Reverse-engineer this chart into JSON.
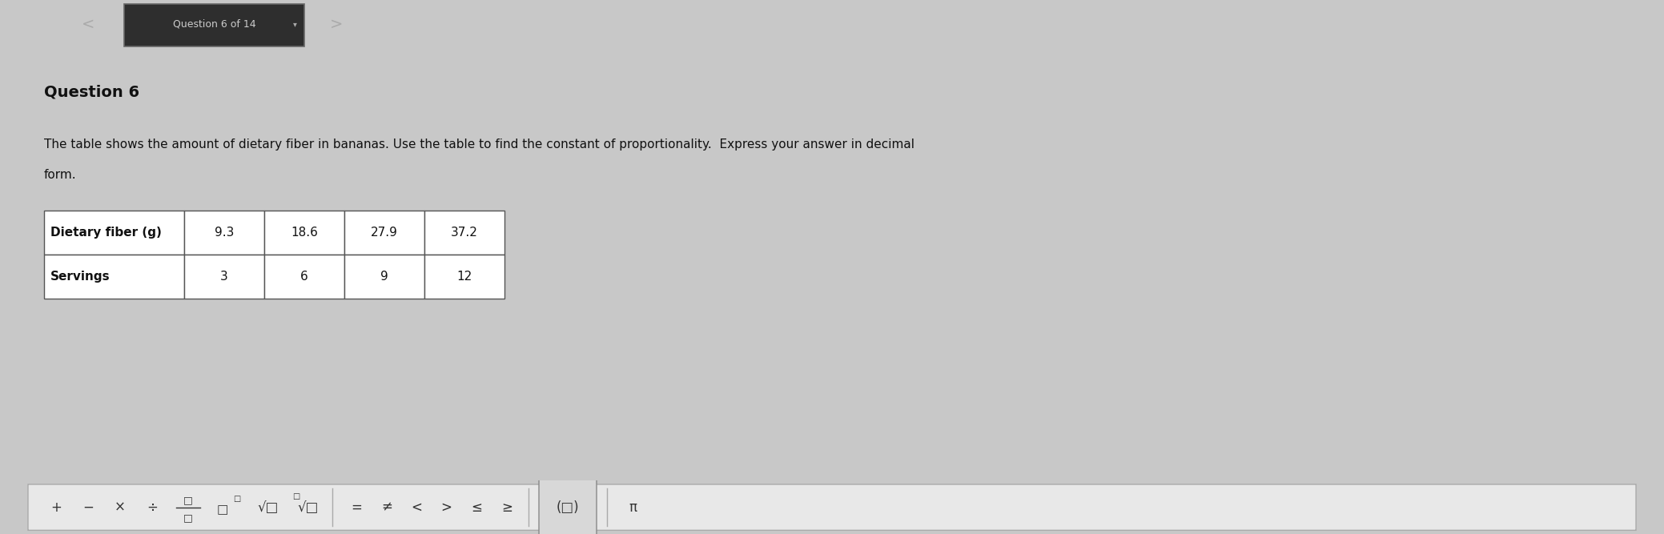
{
  "title": "Question 6",
  "question_text_line1": "The table shows the amount of dietary fiber in bananas. Use the table to find the constant of proportionality.  Express your answer in decimal",
  "question_text_line2": "form.",
  "table_row1": [
    "Dietary fiber (g)",
    "9.3",
    "18.6",
    "27.9",
    "37.2"
  ],
  "table_row2": [
    "Servings",
    "3",
    "6",
    "9",
    "12"
  ],
  "nav_text": "Question 6 of 14",
  "nav_bg": "#1e1e1e",
  "nav_box_bg": "#3a3a3a",
  "main_bg": "#c8c8c8",
  "toolbar_bg": "#d0d0d0",
  "toolbar_border": "#aaaaaa",
  "table_border": "#555555",
  "table_header_bg": "#ffffff",
  "table_cell_bg": "#ffffff",
  "title_fontsize": 14,
  "body_fontsize": 11,
  "table_fontsize": 11,
  "toolbar_fontsize": 12
}
